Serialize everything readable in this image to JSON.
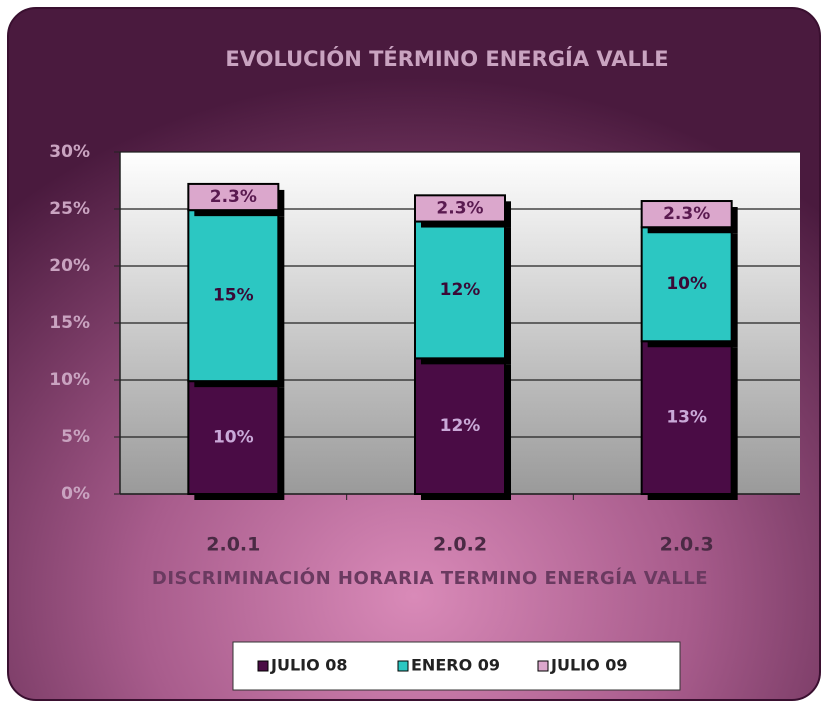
{
  "chart_data": {
    "type": "stacked_bar",
    "title": "EVOLUCIÓN TÉRMINO ENERGÍA VALLE",
    "x_label": "DISCRIMINACIÓN HORARIA TERMINO ENERGÍA VALLE",
    "categories": [
      "2.0.1",
      "2.0.2",
      "2.0.3"
    ],
    "series": [
      {
        "name": "JULIO 08",
        "color": "#4a0c45",
        "values": [
          9.9,
          11.9,
          13.4
        ],
        "value_labels": [
          "10%",
          "12%",
          "13%"
        ]
      },
      {
        "name": "ENERO 09",
        "color": "#2cc7c2",
        "values": [
          15,
          12,
          10
        ],
        "value_labels": [
          "15%",
          "12%",
          "10%"
        ]
      },
      {
        "name": "JULIO 09",
        "color": "#dba7cc",
        "values": [
          2.3,
          2.3,
          2.3
        ],
        "value_labels": [
          "2.3%",
          "2.3%",
          "2.3%"
        ]
      }
    ],
    "ylim": [
      0,
      30
    ],
    "yticks": [
      {
        "value": 0,
        "label": "0%"
      },
      {
        "value": 5,
        "label": "5%"
      },
      {
        "value": 10,
        "label": "10%"
      },
      {
        "value": 15,
        "label": "15%"
      },
      {
        "value": 20,
        "label": "20%"
      },
      {
        "value": 25,
        "label": "25%"
      },
      {
        "value": 30,
        "label": "30%"
      }
    ],
    "grid": true,
    "legend": "bottom"
  }
}
